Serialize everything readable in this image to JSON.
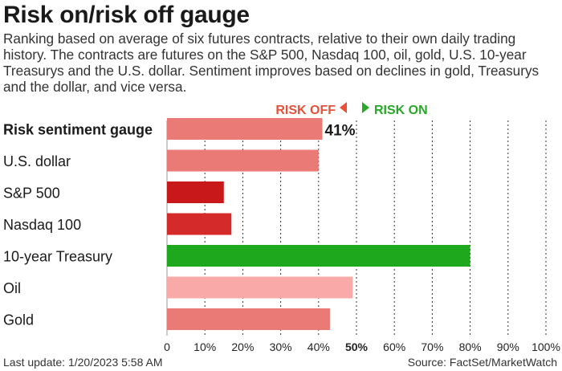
{
  "title": "Risk on/risk off gauge",
  "subtitle": "Ranking based on average of six futures contracts, relative to their own daily trading history. The contracts are futures on the S&P 500, Nasdaq 100, oil, gold, U.S. 10-year Treasurys and the U.S. dollar. Sentiment improves based on declines in gold, Treasurys and the dollar, and vice versa.",
  "legend": {
    "risk_off": "RISK OFF",
    "risk_on": "RISK ON",
    "risk_off_color": "#e8503a",
    "risk_on_color": "#27a827"
  },
  "footer": {
    "last_update": "Last update: 1/20/2023 5:58 AM",
    "source": "Source: FactSet/MarketWatch"
  },
  "chart_data": {
    "type": "bar",
    "orientation": "horizontal",
    "categories": [
      "Risk sentiment gauge",
      "U.S. dollar",
      "S&P 500",
      "Nasdaq 100",
      "10-year Treasury",
      "Oil",
      "Gold"
    ],
    "values": [
      41,
      40,
      15,
      17,
      80,
      49,
      43
    ],
    "colors": [
      "#ea7a75",
      "#ea7a75",
      "#c8181a",
      "#d42a2a",
      "#1ea81e",
      "#f8a9a8",
      "#ea7a75"
    ],
    "value_labels": {
      "Risk sentiment gauge": "41%"
    },
    "bold_categories": [
      "Risk sentiment gauge"
    ],
    "xlim": [
      0,
      100
    ],
    "xticks": [
      "0",
      "10%",
      "20%",
      "30%",
      "40%",
      "50%",
      "60%",
      "70%",
      "80%",
      "90%",
      "100%"
    ],
    "bold_tick": "50%",
    "grid": "vertical-dotted"
  }
}
